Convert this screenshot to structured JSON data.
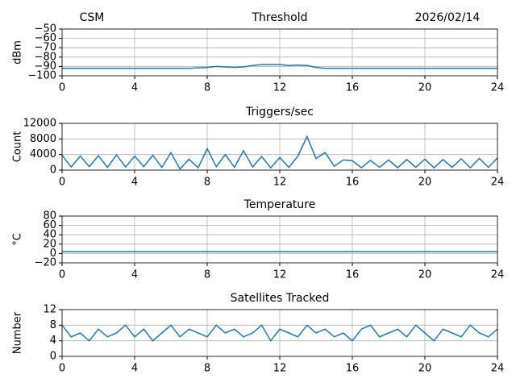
{
  "chart_data": [
    {
      "type": "line",
      "title": "Threshold",
      "left_title": "CSM",
      "right_title": "2026/02/14",
      "ylabel": "dBm",
      "x": [
        0,
        0.5,
        1,
        1.5,
        2,
        2.5,
        3,
        3.5,
        4,
        4.5,
        5,
        5.5,
        6,
        6.5,
        7,
        7.5,
        8,
        8.5,
        9,
        9.5,
        10,
        10.5,
        11,
        11.5,
        12,
        12.5,
        13,
        13.5,
        14,
        14.5,
        15,
        15.5,
        16,
        16.5,
        17,
        17.5,
        18,
        18.5,
        19,
        19.5,
        20,
        20.5,
        21,
        21.5,
        22,
        22.5,
        23,
        23.5,
        24
      ],
      "values": [
        -92,
        -92,
        -92,
        -92,
        -92,
        -92,
        -92,
        -92,
        -92,
        -92,
        -92,
        -92,
        -92,
        -92,
        -92,
        -91.5,
        -91,
        -90,
        -90.5,
        -91,
        -90.5,
        -89,
        -88,
        -88,
        -88,
        -89,
        -88.5,
        -89,
        -91,
        -92,
        -92,
        -92,
        -92,
        -92,
        -92,
        -92,
        -92,
        -92,
        -92,
        -92,
        -92,
        -92,
        -92,
        -92,
        -92,
        -92,
        -92,
        -92,
        -92
      ],
      "color": "#1f77b4",
      "xlim": [
        0,
        24
      ],
      "xticks": [
        0,
        4,
        8,
        12,
        16,
        20,
        24
      ],
      "ylim": [
        -100,
        -50
      ],
      "yticks": [
        {
          "value": -50,
          "label": "−50"
        },
        {
          "value": -60,
          "label": "−60"
        },
        {
          "value": -70,
          "label": "−70"
        },
        {
          "value": -80,
          "label": "−80"
        },
        {
          "value": -90,
          "label": "−90"
        },
        {
          "value": -100,
          "label": "−100"
        }
      ],
      "grid": true
    },
    {
      "type": "line",
      "title": "Triggers/sec",
      "ylabel": "Count",
      "x": [
        0,
        0.5,
        1,
        1.5,
        2,
        2.5,
        3,
        3.5,
        4,
        4.5,
        5,
        5.5,
        6,
        6.5,
        7,
        7.5,
        8,
        8.5,
        9,
        9.5,
        10,
        10.5,
        11,
        11.5,
        12,
        12.5,
        13,
        13.5,
        14,
        14.5,
        15,
        15.5,
        16,
        16.5,
        17,
        17.5,
        18,
        18.5,
        19,
        19.5,
        20,
        20.5,
        21,
        21.5,
        22,
        22.5,
        23,
        23.5,
        24
      ],
      "values": [
        3800,
        800,
        3600,
        900,
        3700,
        700,
        3900,
        800,
        3600,
        900,
        3800,
        700,
        4500,
        300,
        2800,
        600,
        5500,
        900,
        4000,
        700,
        5000,
        800,
        3500,
        600,
        3200,
        700,
        3600,
        8600,
        3000,
        4500,
        1000,
        2600,
        2400,
        600,
        2500,
        700,
        2600,
        600,
        2700,
        700,
        2800,
        600,
        2700,
        700,
        2900,
        600,
        3000,
        700,
        3100
      ],
      "color": "#1f77b4",
      "xlim": [
        0,
        24
      ],
      "xticks": [
        0,
        4,
        8,
        12,
        16,
        20,
        24
      ],
      "ylim": [
        0,
        12000
      ],
      "yticks": [
        0,
        4000,
        8000,
        12000
      ],
      "grid": true
    },
    {
      "type": "line",
      "title": "Temperature",
      "ylabel": "°C",
      "x": [
        0,
        0.5,
        1,
        1.5,
        2,
        2.5,
        3,
        3.5,
        4,
        4.5,
        5,
        5.5,
        6,
        6.5,
        7,
        7.5,
        8,
        8.5,
        9,
        9.5,
        10,
        10.5,
        11,
        11.5,
        12,
        12.5,
        13,
        13.5,
        14,
        14.5,
        15,
        15.5,
        16,
        16.5,
        17,
        17.5,
        18,
        18.5,
        19,
        19.5,
        20,
        20.5,
        21,
        21.5,
        22,
        22.5,
        23,
        23.5,
        24
      ],
      "values": [
        4,
        4,
        4,
        4,
        4,
        4,
        4,
        4,
        4,
        4,
        4,
        4,
        4,
        4,
        4,
        4,
        4,
        4,
        4,
        4,
        4,
        4,
        4,
        4,
        4,
        4,
        4,
        4,
        4,
        4,
        4,
        4,
        4,
        4,
        4,
        4,
        4,
        4,
        4,
        4,
        4,
        4,
        4,
        4,
        4,
        4,
        4,
        4,
        4
      ],
      "color": "#1f77b4",
      "xlim": [
        0,
        24
      ],
      "xticks": [
        0,
        4,
        8,
        12,
        16,
        20,
        24
      ],
      "ylim": [
        -20,
        80
      ],
      "yticks": [
        {
          "value": -20,
          "label": "−20"
        },
        0,
        20,
        40,
        60,
        80
      ],
      "grid": true
    },
    {
      "type": "line",
      "title": "Satellites Tracked",
      "ylabel": "Number",
      "x": [
        0,
        0.5,
        1,
        1.5,
        2,
        2.5,
        3,
        3.5,
        4,
        4.5,
        5,
        5.5,
        6,
        6.5,
        7,
        7.5,
        8,
        8.5,
        9,
        9.5,
        10,
        10.5,
        11,
        11.5,
        12,
        12.5,
        13,
        13.5,
        14,
        14.5,
        15,
        15.5,
        16,
        16.5,
        17,
        17.5,
        18,
        18.5,
        19,
        19.5,
        20,
        20.5,
        21,
        21.5,
        22,
        22.5,
        23,
        23.5,
        24
      ],
      "values": [
        8,
        5,
        6,
        4,
        7,
        5,
        6,
        8,
        5,
        7,
        4,
        6,
        8,
        5,
        7,
        6,
        5,
        8,
        6,
        7,
        5,
        6,
        8,
        4,
        7,
        6,
        5,
        8,
        6,
        7,
        5,
        6,
        4,
        7,
        8,
        5,
        6,
        7,
        5,
        8,
        6,
        4,
        7,
        6,
        5,
        8,
        6,
        5,
        7
      ],
      "color": "#1f77b4",
      "xlim": [
        0,
        24
      ],
      "xticks": [
        0,
        4,
        8,
        12,
        16,
        20,
        24
      ],
      "ylim": [
        0,
        12
      ],
      "yticks": [
        0,
        4,
        8,
        12
      ],
      "grid": true
    }
  ]
}
